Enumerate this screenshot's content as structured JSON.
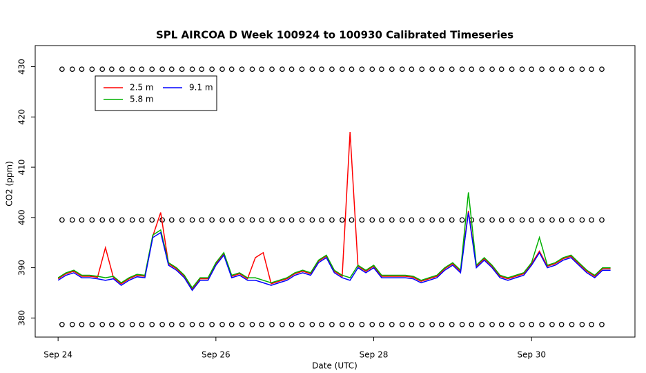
{
  "chart_data": {
    "type": "line",
    "title": "SPL AIRCOA D  Week 100924 to 100930  Calibrated Timeseries",
    "x_label": "Date (UTC)",
    "y_label": "CO2 (ppm)",
    "xlim": [
      23.71,
      31.31
    ],
    "ylim": [
      376.2,
      434.2
    ],
    "xticks": [
      {
        "value": 24,
        "label": "Sep 24"
      },
      {
        "value": 26,
        "label": "Sep 26"
      },
      {
        "value": 28,
        "label": "Sep 28"
      },
      {
        "value": 30,
        "label": "Sep 30"
      }
    ],
    "yticks": [
      380,
      390,
      400,
      410,
      420,
      430
    ],
    "legend": "topleft",
    "x": [
      24.0,
      24.1,
      24.2,
      24.3,
      24.4,
      24.5,
      24.6,
      24.7,
      24.8,
      24.9,
      25.0,
      25.1,
      25.2,
      25.3,
      25.4,
      25.5,
      25.6,
      25.7,
      25.8,
      25.9,
      26.0,
      26.1,
      26.2,
      26.3,
      26.4,
      26.5,
      26.6,
      26.7,
      26.8,
      26.9,
      27.0,
      27.1,
      27.2,
      27.3,
      27.4,
      27.5,
      27.6,
      27.7,
      27.8,
      27.9,
      28.0,
      28.1,
      28.2,
      28.3,
      28.4,
      28.5,
      28.6,
      28.7,
      28.8,
      28.9,
      29.0,
      29.1,
      29.2,
      29.3,
      29.4,
      29.5,
      29.6,
      29.7,
      29.8,
      29.9,
      30.0,
      30.1,
      30.2,
      30.3,
      30.4,
      30.5,
      30.6,
      30.7,
      30.8,
      30.9,
      31.0
    ],
    "series": [
      {
        "name": "2.5 m",
        "color": "#ff0000",
        "values": [
          387.8,
          388.8,
          389.3,
          388.3,
          388.3,
          388.1,
          394,
          388.1,
          386.8,
          387.8,
          388.5,
          388.3,
          396.3,
          401,
          390.8,
          389.8,
          388.3,
          385.8,
          387.8,
          387.8,
          390.8,
          392.8,
          388.3,
          388.8,
          387.8,
          392,
          393,
          386.8,
          387.3,
          387.8,
          388.8,
          389.3,
          388.8,
          391.3,
          392.3,
          389.3,
          388.3,
          417,
          390.3,
          389.3,
          390.3,
          388.3,
          388.3,
          388.3,
          388.3,
          388.1,
          387.3,
          387.8,
          388.3,
          389.8,
          390.8,
          389.3,
          401.3,
          390.3,
          391.8,
          390.3,
          388.3,
          387.8,
          388.3,
          388.8,
          390.8,
          393.3,
          390.3,
          390.8,
          391.8,
          392.3,
          390.8,
          389.3,
          388.3,
          389.8,
          389.8
        ]
      },
      {
        "name": "5.8 m",
        "color": "#00b000",
        "values": [
          388,
          389,
          389.5,
          388.5,
          388.5,
          388.3,
          388,
          388.3,
          387,
          388,
          388.7,
          388.5,
          396.5,
          397.5,
          391,
          390,
          388.5,
          386,
          388,
          388,
          391,
          393,
          388.5,
          389,
          388,
          388,
          387.5,
          387,
          387.5,
          388,
          389,
          389.5,
          389,
          391.5,
          392.5,
          389.5,
          388.5,
          388,
          390.5,
          389.5,
          390.5,
          388.5,
          388.5,
          388.5,
          388.5,
          388.3,
          387.5,
          388,
          388.5,
          390,
          391,
          389.5,
          405,
          390.5,
          392,
          390.5,
          388.5,
          388,
          388.5,
          389,
          391,
          396,
          390.5,
          391,
          392,
          392.5,
          391,
          389.5,
          388.5,
          390,
          390
        ]
      },
      {
        "name": "9.1 m",
        "color": "#0000ff",
        "values": [
          387.5,
          388.5,
          389,
          388,
          388,
          387.8,
          387.5,
          387.8,
          386.5,
          387.5,
          388.2,
          388,
          396,
          397,
          390.5,
          389.5,
          388,
          385.5,
          387.5,
          387.5,
          390.5,
          392.5,
          388,
          388.5,
          387.5,
          387.5,
          387,
          386.5,
          387,
          387.5,
          388.5,
          389,
          388.5,
          391,
          392,
          389,
          388,
          387.5,
          390,
          389,
          390,
          388,
          388,
          388,
          388,
          387.8,
          387,
          387.5,
          388,
          389.5,
          390.5,
          389,
          401,
          390,
          391.5,
          390,
          388,
          387.5,
          388,
          388.5,
          390.5,
          393,
          390,
          390.5,
          391.5,
          392,
          390.5,
          389,
          388,
          389.5,
          389.5
        ]
      }
    ],
    "markers": {
      "levels": [
        429.5,
        399.5,
        378.7
      ],
      "x": [
        24.05,
        24.18,
        24.3,
        24.43,
        24.56,
        24.68,
        24.81,
        24.94,
        25.06,
        25.19,
        25.32,
        25.44,
        25.57,
        25.7,
        25.82,
        25.95,
        26.08,
        26.2,
        26.33,
        26.46,
        26.58,
        26.71,
        26.84,
        26.96,
        27.09,
        27.22,
        27.34,
        27.47,
        27.6,
        27.72,
        27.85,
        27.98,
        28.1,
        28.23,
        28.36,
        28.48,
        28.61,
        28.74,
        28.86,
        28.99,
        29.12,
        29.24,
        29.37,
        29.5,
        29.62,
        29.75,
        29.88,
        30.0,
        30.13,
        30.26,
        30.38,
        30.51,
        30.64,
        30.76,
        30.89
      ]
    }
  }
}
